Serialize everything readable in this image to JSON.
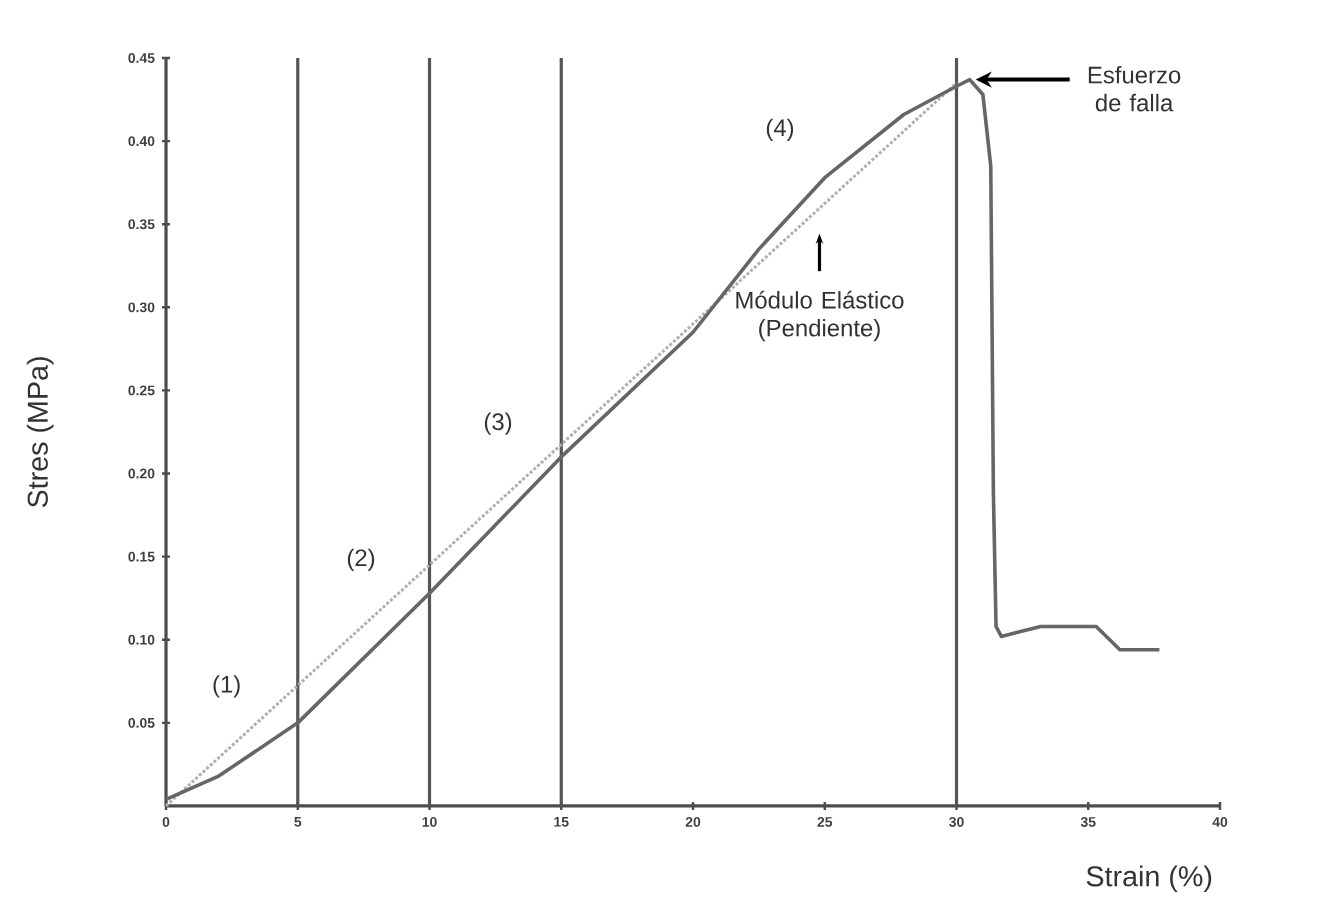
{
  "chart_data": {
    "type": "line",
    "xlabel": "Strain (%)",
    "ylabel": "Stres (MPa)",
    "xlim": [
      0,
      40
    ],
    "ylim": [
      0,
      0.45
    ],
    "xticks": [
      0,
      5,
      10,
      15,
      20,
      25,
      30,
      35,
      40
    ],
    "yticks": [
      0.05,
      {
        "value": 0.1,
        "label": "0.10"
      },
      0.15,
      {
        "value": 0.2,
        "label": "0.20"
      },
      0.25,
      {
        "value": 0.3,
        "label": "0.30"
      },
      0.35,
      {
        "value": 0.4,
        "label": "0.40"
      },
      0.45
    ],
    "grid": false,
    "marker": "none",
    "series": [
      {
        "color": "#b0b0b0",
        "line_style": "dotted",
        "x": [
          0,
          30
        ],
        "values": [
          0,
          0.435
        ]
      },
      {
        "color": "#666666",
        "line_style": "solid",
        "x": [
          0,
          2,
          5,
          10,
          15,
          20,
          22.5,
          25,
          28,
          30,
          30.5,
          31,
          31.3,
          31.4,
          31.5,
          31.7,
          33.2,
          35.3,
          36.2,
          37.7
        ],
        "values": [
          0.004,
          0.018,
          0.05,
          0.128,
          0.21,
          0.285,
          0.335,
          0.378,
          0.416,
          0.433,
          0.437,
          0.428,
          0.385,
          0.188,
          0.108,
          0.102,
          0.108,
          0.108,
          0.094,
          0.094
        ]
      }
    ],
    "ref_lines": [
      {
        "axis": "x",
        "value": 5,
        "color": "#555555"
      },
      {
        "axis": "x",
        "value": 10,
        "color": "#555555"
      },
      {
        "axis": "x",
        "value": 15,
        "color": "#555555"
      },
      {
        "axis": "x",
        "value": 30,
        "color": "#555555"
      }
    ],
    "annotations": [
      "(1)",
      "(2)",
      "(3)",
      "(4)",
      "Módulo Elástico (Pendiente)",
      {
        "text": "Esfuerzo de falla",
        "x": 30.5,
        "y": 0.437
      }
    ]
  }
}
